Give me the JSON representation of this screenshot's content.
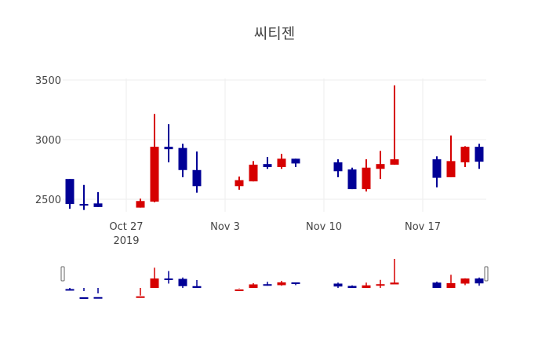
{
  "title": "씨티젠",
  "colors": {
    "increasing": "#d60000",
    "decreasing": "#000096",
    "grid": "#eeeeee"
  },
  "chart_data": {
    "type": "candlestick",
    "title": "씨티젠",
    "xlabel": "",
    "ylabel": "",
    "ylim": [
      2330,
      3600
    ],
    "yticks": [
      2500,
      3000,
      3500
    ],
    "xticks": [
      {
        "label": "Oct 27",
        "sublabel": "2019",
        "date": "2019-10-27"
      },
      {
        "label": "Nov 3",
        "date": "2019-11-03"
      },
      {
        "label": "Nov 10",
        "date": "2019-11-10"
      },
      {
        "label": "Nov 17",
        "date": "2019-11-17"
      }
    ],
    "grid": true,
    "rangeslider": true,
    "x": [
      "2019-10-23",
      "2019-10-24",
      "2019-10-25",
      "2019-10-28",
      "2019-10-29",
      "2019-10-30",
      "2019-10-31",
      "2019-11-01",
      "2019-11-04",
      "2019-11-05",
      "2019-11-06",
      "2019-11-07",
      "2019-11-08",
      "2019-11-11",
      "2019-11-12",
      "2019-11-13",
      "2019-11-14",
      "2019-11-15",
      "2019-11-18",
      "2019-11-19",
      "2019-11-20",
      "2019-11-21"
    ],
    "open": [
      2670,
      2460,
      2465,
      2430,
      2480,
      2940,
      2930,
      2745,
      2610,
      2650,
      2795,
      2770,
      2840,
      2810,
      2750,
      2585,
      2755,
      2790,
      2835,
      2685,
      2810,
      2940
    ],
    "high": [
      2670,
      2620,
      2560,
      2505,
      3215,
      3130,
      2965,
      2900,
      2690,
      2820,
      2855,
      2880,
      2840,
      2835,
      2765,
      2835,
      2905,
      3455,
      2860,
      3035,
      2945,
      2965
    ],
    "low": [
      2420,
      2410,
      2435,
      2430,
      2475,
      2810,
      2685,
      2555,
      2580,
      2650,
      2755,
      2755,
      2770,
      2685,
      2585,
      2565,
      2670,
      2790,
      2600,
      2685,
      2770,
      2755
    ],
    "close": [
      2460,
      2455,
      2435,
      2485,
      2940,
      2920,
      2745,
      2610,
      2660,
      2790,
      2770,
      2840,
      2800,
      2735,
      2585,
      2765,
      2795,
      2835,
      2680,
      2820,
      2940,
      2815
    ]
  }
}
